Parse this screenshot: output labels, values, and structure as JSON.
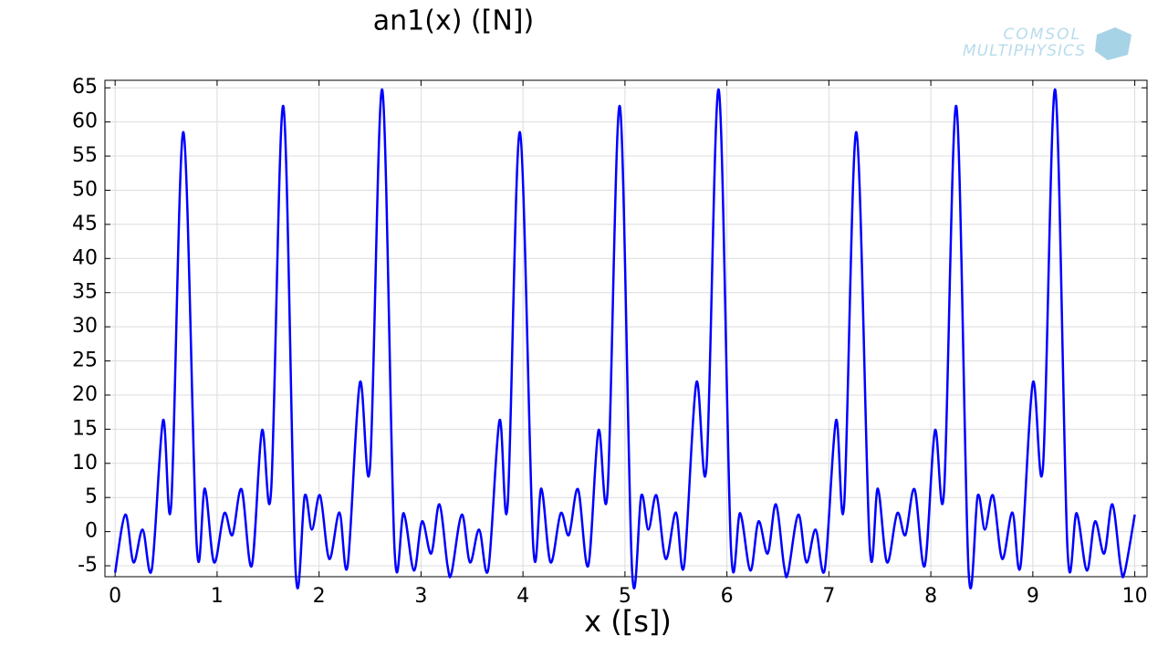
{
  "chart_data": {
    "type": "line",
    "title": "an1(x) ([N])",
    "x_label": "x ([s])",
    "logo": [
      "COMSOL",
      "MULTIPHYSICS"
    ],
    "xlim": [
      -0.1,
      10.12
    ],
    "ylim": [
      -6.6,
      66.1
    ],
    "xticks": [
      0,
      1,
      2,
      3,
      4,
      5,
      6,
      7,
      8,
      9,
      10
    ],
    "yticks": [
      -5,
      0,
      5,
      10,
      15,
      20,
      25,
      30,
      35,
      40,
      45,
      50,
      55,
      60,
      65
    ],
    "grid": true,
    "series": [
      {
        "color": "#0000ff",
        "x": [
          0,
          0.1,
          0.18,
          0.27,
          0.36,
          0.47,
          0.55,
          0.67,
          0.8,
          0.88,
          0.97,
          1.07,
          1.15,
          1.24,
          1.34,
          1.44,
          1.53,
          1.65,
          1.77,
          1.86,
          1.93,
          2.01,
          2.1,
          2.2,
          2.28,
          2.4,
          2.5,
          2.62,
          2.74,
          2.83,
          2.93,
          3.01,
          3.1,
          3.18,
          3.26,
          3.3,
          3.4,
          3.48,
          3.57,
          3.66,
          3.77,
          3.85,
          3.97,
          4.1,
          4.18,
          4.27,
          4.37,
          4.45,
          4.54,
          4.64,
          4.74,
          4.83,
          4.95,
          5.07,
          5.16,
          5.23,
          5.31,
          5.4,
          5.5,
          5.58,
          5.7,
          5.8,
          5.92,
          6.04,
          6.13,
          6.23,
          6.31,
          6.4,
          6.48,
          6.56,
          6.6,
          6.7,
          6.78,
          6.87,
          6.96,
          7.07,
          7.15,
          7.27,
          7.4,
          7.48,
          7.57,
          7.67,
          7.75,
          7.84,
          7.94,
          8.04,
          8.13,
          8.25,
          8.37,
          8.46,
          8.53,
          8.61,
          8.7,
          8.8,
          8.88,
          9.0,
          9.1,
          9.22,
          9.34,
          9.43,
          9.53,
          9.61,
          9.7,
          9.78,
          9.86,
          9.9,
          10.0
        ],
        "values": [
          -6,
          2.5,
          -4.5,
          0.3,
          -5.5,
          16.3,
          4,
          58.5,
          -2,
          6.3,
          -4.5,
          2.7,
          -0.5,
          6.2,
          -5,
          14.8,
          6,
          62.3,
          -5.7,
          5.3,
          0.3,
          5.3,
          -4,
          2.8,
          -5,
          21.8,
          9.5,
          64.7,
          -2.5,
          2.7,
          -5.7,
          1.5,
          -3.2,
          4,
          -5,
          -6,
          2.5,
          -4.5,
          0.3,
          -5.5,
          16.3,
          4,
          58.5,
          -2,
          6.3,
          -4.5,
          2.7,
          -0.5,
          6.2,
          -5,
          14.8,
          6,
          62.3,
          -5.7,
          5.3,
          0.3,
          5.3,
          -4,
          2.8,
          -5,
          21.8,
          9.5,
          64.7,
          -2.5,
          2.7,
          -5.7,
          1.5,
          -3.2,
          4,
          -5,
          -6,
          2.5,
          -4.5,
          0.3,
          -5.5,
          16.3,
          4,
          58.5,
          -2,
          6.3,
          -4.5,
          2.7,
          -0.5,
          6.2,
          -5,
          14.8,
          6,
          62.3,
          -5.7,
          5.3,
          0.3,
          5.3,
          -4,
          2.8,
          -5,
          21.8,
          9.5,
          64.7,
          -2.5,
          2.7,
          -5.7,
          1.5,
          -3.2,
          4,
          -5,
          -6,
          2.5
        ]
      }
    ]
  }
}
